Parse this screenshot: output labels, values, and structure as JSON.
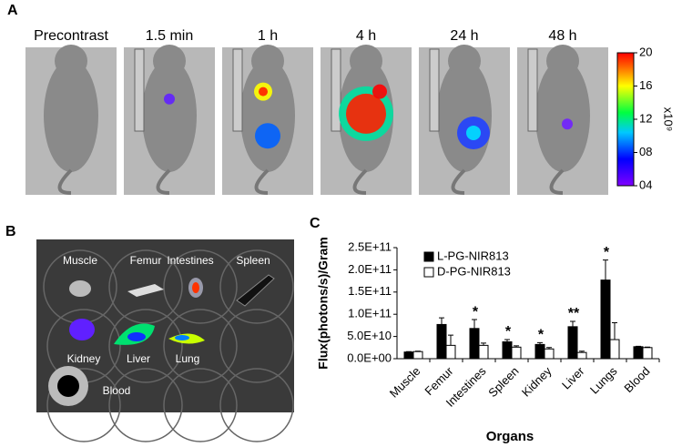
{
  "panel_a": {
    "label": "A",
    "timepoints": [
      "Precontrast",
      "1.5 min",
      "1 h",
      "4 h",
      "24 h",
      "48 h"
    ],
    "colorbar": {
      "ylim": [
        4,
        20
      ],
      "ticks": [
        20,
        16,
        12,
        {
          "value": 8,
          "label": "08"
        },
        {
          "value": 4,
          "label": "04"
        }
      ],
      "unit": "x10⁹"
    }
  },
  "panel_b": {
    "label": "B",
    "organs": [
      "Muscle",
      "Femur",
      "Intestines",
      "Spleen",
      "Kidney",
      "Liver",
      "Lung",
      "Blood"
    ]
  },
  "chart_data": {
    "type": "bar",
    "label": "C",
    "categories": [
      "Muscle",
      "Femur",
      "Intestines",
      "Spleen",
      "Kidney",
      "Liver",
      "Lungs",
      "Blood"
    ],
    "series": [
      {
        "name": "L-PG-NIR813",
        "color": "#000000",
        "values": [
          15000000000.0,
          77000000000.0,
          68000000000.0,
          38000000000.0,
          32000000000.0,
          72000000000.0,
          177000000000.0,
          27000000000.0
        ],
        "errors": [
          1000000000.0,
          15000000000.0,
          20000000000.0,
          5000000000.0,
          4000000000.0,
          12000000000.0,
          45000000000.0,
          1000000000.0
        ]
      },
      {
        "name": "D-PG-NIR813",
        "color": "#ffffff",
        "values": [
          16000000000.0,
          30000000000.0,
          30000000000.0,
          26000000000.0,
          22000000000.0,
          14000000000.0,
          43000000000.0,
          25000000000.0
        ],
        "errors": [
          1000000000.0,
          23000000000.0,
          5000000000.0,
          3000000000.0,
          3000000000.0,
          3000000000.0,
          38000000000.0,
          1000000000.0
        ]
      }
    ],
    "significance": [
      null,
      null,
      "*",
      "*",
      "*",
      "**",
      "*",
      null
    ],
    "ylim": [
      0,
      250000000000.0
    ],
    "yticks": [
      {
        "value": 0,
        "label": "0.0E+00"
      },
      {
        "value": 50000000000.0,
        "label": "5.0E+10"
      },
      {
        "value": 100000000000.0,
        "label": "1.0E+11"
      },
      {
        "value": 150000000000.0,
        "label": "1.5E+11"
      },
      {
        "value": 200000000000.0,
        "label": "2.0E+11"
      },
      {
        "value": 250000000000.0,
        "label": "2.5E+11"
      }
    ],
    "y_label": "Flux(photons/s)/Gram",
    "x_label": "Organs"
  }
}
